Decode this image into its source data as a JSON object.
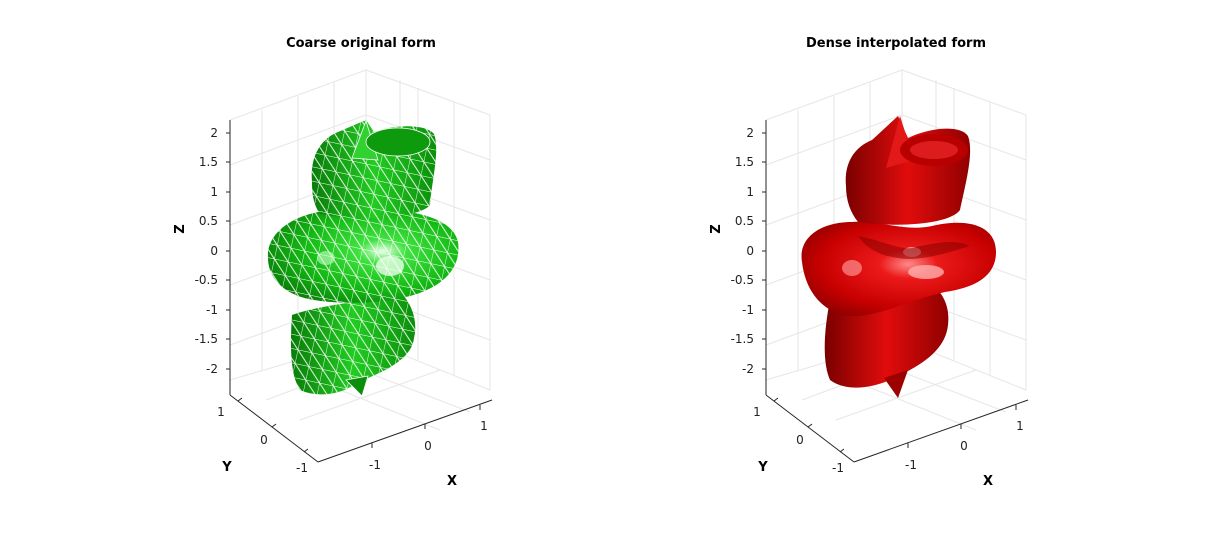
{
  "figure": {
    "panels": [
      {
        "title": "Coarse original form",
        "xlabel": "X",
        "ylabel": "Y",
        "zlabel": "Z",
        "surface_color": "#12c512",
        "edge_color": "#ffffff",
        "mesh": "coarse",
        "x_ticks": [
          "-1",
          "0",
          "1"
        ],
        "y_ticks": [
          "1",
          "0",
          "-1"
        ],
        "z_ticks": [
          "2",
          "1.5",
          "1",
          "0.5",
          "0",
          "-0.5",
          "-1",
          "-1.5",
          "-2"
        ]
      },
      {
        "title": "Dense interpolated form",
        "xlabel": "X",
        "ylabel": "Y",
        "zlabel": "Z",
        "surface_color": "#d40000",
        "edge_color": "none",
        "mesh": "dense",
        "x_ticks": [
          "-1",
          "0",
          "1"
        ],
        "y_ticks": [
          "1",
          "0",
          "-1"
        ],
        "z_ticks": [
          "2",
          "1.5",
          "1",
          "0.5",
          "0",
          "-0.5",
          "-1",
          "-1.5",
          "-2"
        ]
      }
    ]
  },
  "chart_data": [
    {
      "type": "surface3d",
      "title": "Coarse original form",
      "xlabel": "X",
      "ylabel": "Y",
      "zlabel": "Z",
      "xlim": [
        -1.5,
        1.5
      ],
      "ylim": [
        -1.5,
        1.5
      ],
      "zlim": [
        -2.3,
        2.3
      ],
      "x_ticks": [
        -1,
        0,
        1
      ],
      "y_ticks": [
        -1,
        0,
        1
      ],
      "z_ticks": [
        -2,
        -1.5,
        -1,
        -0.5,
        0,
        0.5,
        1,
        1.5,
        2
      ],
      "grid": true,
      "color": "#12c512",
      "edges": "white triangulated mesh"
    },
    {
      "type": "surface3d",
      "title": "Dense interpolated form",
      "xlabel": "X",
      "ylabel": "Y",
      "zlabel": "Z",
      "xlim": [
        -1.5,
        1.5
      ],
      "ylim": [
        -1.5,
        1.5
      ],
      "zlim": [
        -2.3,
        2.3
      ],
      "x_ticks": [
        -1,
        0,
        1
      ],
      "y_ticks": [
        -1,
        0,
        1
      ],
      "z_ticks": [
        -2,
        -1.5,
        -1,
        -0.5,
        0,
        0.5,
        1,
        1.5,
        2
      ],
      "grid": true,
      "color": "#d40000",
      "edges": "none"
    }
  ]
}
